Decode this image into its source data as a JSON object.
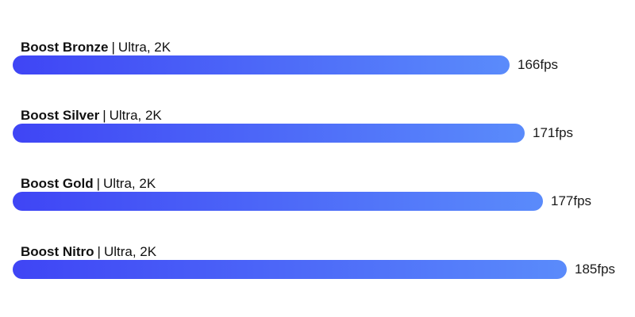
{
  "chart_data": {
    "type": "bar",
    "orientation": "horizontal",
    "categories": [
      "Boost Bronze",
      "Boost Silver",
      "Boost Gold",
      "Boost Nitro"
    ],
    "settings": [
      "Ultra, 2K",
      "Ultra, 2K",
      "Ultra, 2K",
      "Ultra, 2K"
    ],
    "values": [
      166,
      171,
      177,
      185
    ],
    "value_suffix": "fps",
    "separator": "|",
    "xlim": [
      0,
      185
    ],
    "grid": false,
    "bar_color_start": "#3f45f5",
    "bar_color_end": "#5a8bfb"
  }
}
